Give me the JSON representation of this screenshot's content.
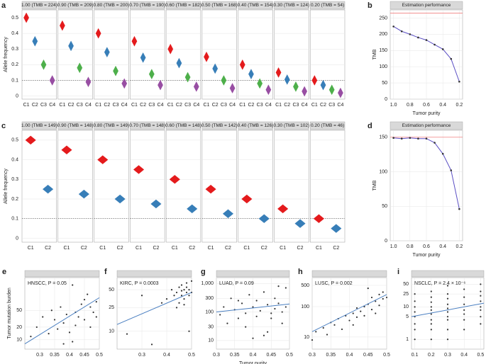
{
  "chart_data": [
    {
      "type": "violin",
      "panel_label": "a",
      "ylabel": "Allele frequency",
      "categories": [
        "C1",
        "C2",
        "C3",
        "C4"
      ],
      "colors": [
        "#e41a1c",
        "#377eb8",
        "#4daf4a",
        "#984ea3"
      ],
      "ylim": [
        -0.02,
        0.55
      ],
      "yticks": [
        0,
        0.1,
        0.2,
        0.3,
        0.4,
        0.5
      ],
      "threshold": 0.1,
      "facets": [
        {
          "title": "1.00 (TMB = 224)",
          "values": [
            0.5,
            0.35,
            0.2,
            0.1
          ]
        },
        {
          "title": "0.90 (TMB = 209)",
          "values": [
            0.45,
            0.32,
            0.18,
            0.09
          ]
        },
        {
          "title": "0.80 (TMB = 200)",
          "values": [
            0.4,
            0.28,
            0.16,
            0.08
          ]
        },
        {
          "title": "0.70 (TMB = 190)",
          "values": [
            0.35,
            0.245,
            0.14,
            0.07
          ]
        },
        {
          "title": "0.60 (TMB = 182)",
          "values": [
            0.3,
            0.21,
            0.12,
            0.06
          ]
        },
        {
          "title": "0.50 (TMB = 168)",
          "values": [
            0.25,
            0.175,
            0.1,
            0.05
          ]
        },
        {
          "title": "0.40 (TMB = 154)",
          "values": [
            0.2,
            0.14,
            0.08,
            0.04
          ]
        },
        {
          "title": "0.30 (TMB = 124)",
          "values": [
            0.15,
            0.105,
            0.06,
            0.03
          ]
        },
        {
          "title": "0.20 (TMB = 54)",
          "values": [
            0.1,
            0.07,
            0.04,
            0.02
          ]
        }
      ]
    },
    {
      "type": "line",
      "panel_label": "b",
      "title": "Estimation performance",
      "xlabel": "Tumor purity",
      "ylabel": "TMB",
      "x": [
        1,
        0.9,
        0.8,
        0.7,
        0.6,
        0.5,
        0.4,
        0.3,
        0.2
      ],
      "values": [
        224,
        209,
        200,
        190,
        182,
        168,
        154,
        124,
        54
      ],
      "color": "#5b4fc4",
      "reference": 265,
      "reference_color": "#f08080",
      "xlim": [
        1.04,
        0.16
      ],
      "xticks": [
        {
          "value": 1,
          "label": "1.0"
        },
        0.8,
        0.6,
        0.4,
        0.2
      ],
      "ylim": [
        0,
        275
      ],
      "yticks": [
        0,
        50,
        100,
        150,
        200,
        250
      ]
    },
    {
      "type": "violin",
      "panel_label": "c",
      "ylabel": "Allele frequency",
      "categories": [
        "C1",
        "C2"
      ],
      "colors": [
        "#e41a1c",
        "#377eb8"
      ],
      "ylim": [
        -0.02,
        0.55
      ],
      "yticks": [
        0,
        0.1,
        0.2,
        0.3,
        0.4,
        0.5
      ],
      "threshold": 0.1,
      "facets": [
        {
          "title": "1.00 (TMB = 149)",
          "values": [
            0.5,
            0.25
          ]
        },
        {
          "title": "0.90 (TMB = 148)",
          "values": [
            0.45,
            0.225
          ]
        },
        {
          "title": "0.80 (TMB = 149)",
          "values": [
            0.4,
            0.2
          ]
        },
        {
          "title": "0.70 (TMB = 148)",
          "values": [
            0.35,
            0.175
          ]
        },
        {
          "title": "0.60 (TMB = 148)",
          "values": [
            0.3,
            0.15
          ]
        },
        {
          "title": "0.50 (TMB = 142)",
          "values": [
            0.25,
            0.125
          ]
        },
        {
          "title": "0.40 (TMB = 126)",
          "values": [
            0.2,
            0.1
          ]
        },
        {
          "title": "0.30 (TMB = 102)",
          "values": [
            0.15,
            0.075
          ]
        },
        {
          "title": "0.20 (TMB = 46)",
          "values": [
            0.1,
            0.05
          ]
        }
      ]
    },
    {
      "type": "line",
      "panel_label": "d",
      "title": "Estimation performance",
      "xlabel": "Tumor purity",
      "ylabel": "TMB",
      "x": [
        1,
        0.9,
        0.8,
        0.7,
        0.6,
        0.5,
        0.4,
        0.3,
        0.2
      ],
      "values": [
        149,
        148,
        149,
        148,
        148,
        142,
        126,
        102,
        46
      ],
      "color": "#5b4fc4",
      "reference": 150,
      "reference_color": "#f08080",
      "xlim": [
        1.04,
        0.16
      ],
      "xticks": [
        {
          "value": 1,
          "label": "1.0"
        },
        0.8,
        0.6,
        0.4,
        0.2
      ],
      "ylim": [
        0,
        160
      ],
      "yticks": [
        0,
        50,
        100,
        150
      ]
    },
    {
      "type": "scatter",
      "panel_label": "e",
      "title": "HNSCC, P = 0.05",
      "ylabel": "Tumor mutation burden",
      "log_y": true,
      "color": "#333333",
      "trend_color": "#4a7fc1",
      "x": [
        0.27,
        0.29,
        0.31,
        0.33,
        0.34,
        0.35,
        0.36,
        0.37,
        0.38,
        0.39,
        0.4,
        0.41,
        0.42,
        0.42,
        0.43,
        0.44,
        0.45,
        0.45,
        0.46,
        0.47,
        0.47,
        0.48,
        0.49,
        0.49,
        0.41,
        0.38
      ],
      "y": [
        12,
        20,
        35,
        14,
        50,
        30,
        18,
        60,
        25,
        40,
        15,
        200,
        45,
        22,
        35,
        70,
        90,
        30,
        120,
        60,
        20,
        45,
        80,
        35,
        9,
        8
      ],
      "trend": {
        "x": [
          0.25,
          0.5
        ],
        "y": [
          8,
          100
        ]
      },
      "xlim": [
        0.25,
        0.5
      ],
      "xticks": [
        0.3,
        0.35,
        0.4,
        0.45,
        0.5
      ],
      "ylim": [
        6,
        300
      ],
      "yticks": [
        10,
        20,
        50
      ]
    },
    {
      "type": "scatter",
      "panel_label": "f",
      "title": "KIRC, P = 0.0003",
      "log_y": true,
      "color": "#333333",
      "trend_color": "#4a7fc1",
      "x": [
        0.24,
        0.3,
        0.34,
        0.38,
        0.4,
        0.42,
        0.43,
        0.44,
        0.45,
        0.45,
        0.46,
        0.46,
        0.47,
        0.47,
        0.48,
        0.48,
        0.48,
        0.49,
        0.49,
        0.49,
        0.5,
        0.5,
        0.44,
        0.47,
        0.46
      ],
      "y": [
        9,
        40,
        6,
        30,
        35,
        50,
        40,
        45,
        55,
        30,
        60,
        40,
        50,
        35,
        45,
        55,
        65,
        40,
        50,
        10,
        70,
        45,
        25,
        28,
        48
      ],
      "trend": {
        "x": [
          0.2,
          0.5
        ],
        "y": [
          13,
          45
        ]
      },
      "xlim": [
        0.2,
        0.5
      ],
      "xticks": [
        0.3,
        0.4,
        0.5
      ],
      "ylim": [
        5,
        80
      ],
      "yticks": [
        10,
        25,
        50
      ]
    },
    {
      "type": "scatter",
      "panel_label": "g",
      "title": "LUAD, P = 0.09",
      "xlabel": "Tumor purity",
      "log_y": true,
      "color": "#333333",
      "trend_color": "#4a7fc1",
      "x": [
        0.31,
        0.32,
        0.33,
        0.34,
        0.35,
        0.36,
        0.37,
        0.38,
        0.38,
        0.39,
        0.4,
        0.41,
        0.41,
        0.42,
        0.43,
        0.43,
        0.44,
        0.45,
        0.45,
        0.46,
        0.46,
        0.47,
        0.47,
        0.48,
        0.48,
        0.49,
        0.49,
        0.4,
        0.36,
        0.44
      ],
      "y": [
        80,
        150,
        40,
        300,
        120,
        60,
        200,
        90,
        30,
        400,
        150,
        70,
        250,
        110,
        15,
        500,
        180,
        60,
        90,
        300,
        130,
        800,
        200,
        100,
        40,
        700,
        150,
        12,
        250,
        20
      ],
      "trend": {
        "x": [
          0.3,
          0.5
        ],
        "y": [
          100,
          190
        ]
      },
      "xlim": [
        0.3,
        0.5
      ],
      "xticks": [
        0.3,
        0.35,
        0.4,
        0.45,
        0.5
      ],
      "ylim": [
        5,
        1600
      ],
      "yticks": [
        10,
        30,
        100,
        300,
        {
          "value": 1000,
          "label": "1,000"
        }
      ]
    },
    {
      "type": "scatter",
      "panel_label": "h",
      "title": "LUSC, P = 0.002",
      "log_y": true,
      "color": "#333333",
      "trend_color": "#4a7fc1",
      "x": [
        0.3,
        0.31,
        0.33,
        0.34,
        0.35,
        0.36,
        0.37,
        0.38,
        0.39,
        0.4,
        0.41,
        0.42,
        0.42,
        0.43,
        0.44,
        0.44,
        0.45,
        0.46,
        0.46,
        0.47,
        0.47,
        0.48,
        0.48,
        0.49,
        0.49,
        0.5,
        0.41,
        0.45
      ],
      "y": [
        8,
        15,
        20,
        12,
        30,
        25,
        40,
        18,
        50,
        35,
        60,
        45,
        90,
        70,
        100,
        50,
        120,
        80,
        200,
        150,
        60,
        250,
        110,
        180,
        300,
        200,
        25,
        400
      ],
      "trend": {
        "x": [
          0.3,
          0.5
        ],
        "y": [
          15,
          250
        ]
      },
      "xlim": [
        0.3,
        0.5
      ],
      "xticks": [
        0.3,
        0.35,
        0.4,
        0.45,
        0.5
      ],
      "ylim": [
        4,
        900
      ],
      "yticks": [
        10,
        100,
        500
      ]
    },
    {
      "type": "scatter",
      "panel_label": "i",
      "title": "NSCLC, P = 2.4 × 10⁻⁶",
      "log_y": true,
      "color": "#333333",
      "trend_color": "#4a7fc1",
      "x": [
        0.1,
        0.1,
        0.1,
        0.1,
        0.1,
        0.1,
        0.1,
        0.1,
        0.2,
        0.2,
        0.2,
        0.2,
        0.2,
        0.2,
        0.2,
        0.2,
        0.2,
        0.2,
        0.3,
        0.3,
        0.3,
        0.3,
        0.3,
        0.3,
        0.3,
        0.3,
        0.3,
        0.3,
        0.4,
        0.4,
        0.4,
        0.4,
        0.4,
        0.4,
        0.4,
        0.5,
        0.5,
        0.5,
        0.5,
        0.5,
        0.5,
        0.5,
        0.5
      ],
      "y": [
        1,
        2,
        3,
        5,
        7,
        10,
        15,
        25,
        1,
        2,
        3,
        4,
        6,
        8,
        10,
        14,
        20,
        30,
        1,
        2,
        4,
        5,
        7,
        9,
        12,
        18,
        25,
        45,
        2,
        4,
        6,
        8,
        12,
        20,
        35,
        3,
        5,
        8,
        10,
        15,
        22,
        30,
        50
      ],
      "trend": {
        "x": [
          0.08,
          0.52
        ],
        "y": [
          5,
          13
        ]
      },
      "xlim": [
        0.08,
        0.52
      ],
      "xticks": [
        0.1,
        0.2,
        0.3,
        0.4,
        0.5
      ],
      "ylim": [
        0.5,
        80
      ],
      "yticks": [
        1,
        5,
        10,
        25,
        50
      ]
    }
  ]
}
